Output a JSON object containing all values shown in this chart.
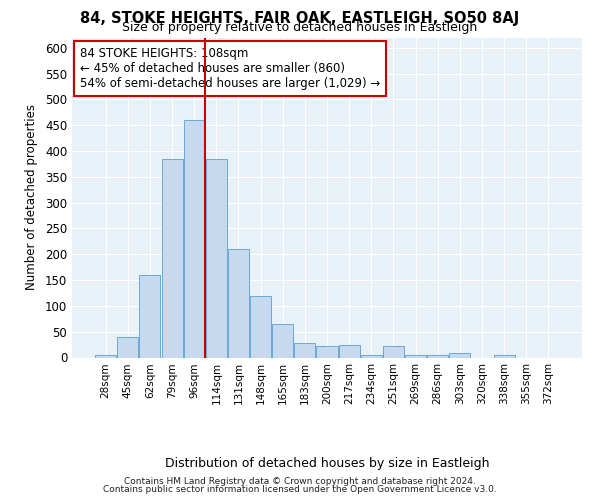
{
  "title": "84, STOKE HEIGHTS, FAIR OAK, EASTLEIGH, SO50 8AJ",
  "subtitle": "Size of property relative to detached houses in Eastleigh",
  "xlabel": "Distribution of detached houses by size in Eastleigh",
  "ylabel": "Number of detached properties",
  "bar_color": "#c6d9ee",
  "bar_edge_color": "#6aaad4",
  "background_color": "#e8f0f8",
  "grid_color": "#ffffff",
  "annotation_box_color": "#cc0000",
  "vline_color": "#cc0000",
  "categories": [
    "28sqm",
    "45sqm",
    "62sqm",
    "79sqm",
    "96sqm",
    "114sqm",
    "131sqm",
    "148sqm",
    "165sqm",
    "183sqm",
    "200sqm",
    "217sqm",
    "234sqm",
    "251sqm",
    "269sqm",
    "286sqm",
    "303sqm",
    "320sqm",
    "338sqm",
    "355sqm",
    "372sqm"
  ],
  "values": [
    5,
    40,
    160,
    385,
    460,
    385,
    210,
    120,
    65,
    28,
    22,
    25,
    5,
    22,
    5,
    5,
    8,
    0,
    5,
    0,
    0
  ],
  "ylim": [
    0,
    620
  ],
  "yticks": [
    0,
    50,
    100,
    150,
    200,
    250,
    300,
    350,
    400,
    450,
    500,
    550,
    600
  ],
  "vline_pos": 4.5,
  "annotation_text": "84 STOKE HEIGHTS: 108sqm\n← 45% of detached houses are smaller (860)\n54% of semi-detached houses are larger (1,029) →",
  "footnote1": "Contains HM Land Registry data © Crown copyright and database right 2024.",
  "footnote2": "Contains public sector information licensed under the Open Government Licence v3.0."
}
